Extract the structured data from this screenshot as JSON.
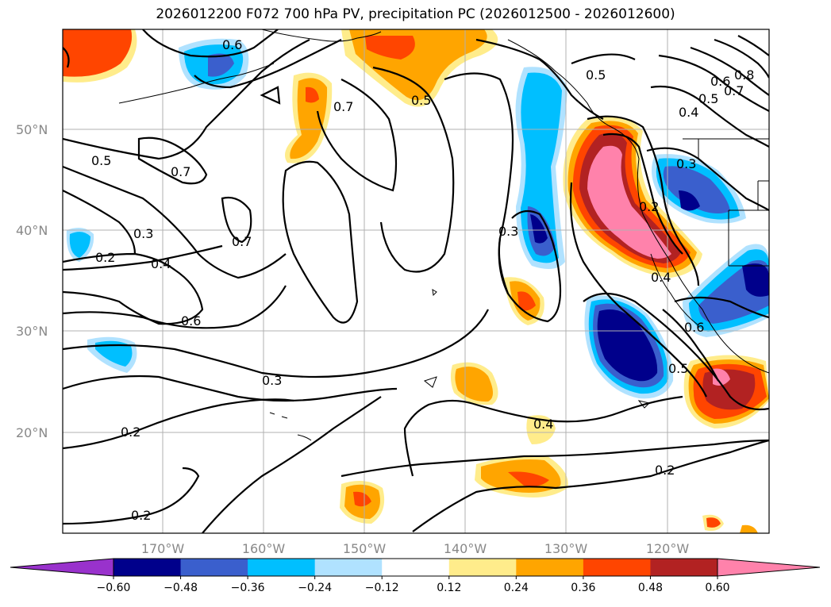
{
  "title": "2026012200 F072 700 hPa PV, precipitation PC (2026012500 - 2026012600)",
  "lat_labels": [
    "50°N",
    "40°N",
    "30°N",
    "20°N"
  ],
  "lon_labels": [
    "170°W",
    "160°W",
    "150°W",
    "140°W",
    "130°W",
    "120°W"
  ],
  "contour_labels": [
    "0.6",
    "0.5",
    "0.7",
    "0.5",
    "0.5",
    "0.6",
    "0.7",
    "0.8",
    "0.4",
    "0.3",
    "0.2",
    "0.5",
    "0.7",
    "0.7",
    "0.3",
    "0.2",
    "0.4",
    "0.6",
    "0.3",
    "0.4",
    "0.3",
    "0.6",
    "0.2",
    "0.4",
    "0.2",
    "0.2",
    "0.5"
  ],
  "colorbar": {
    "ticks": [
      "−0.60",
      "−0.48",
      "−0.36",
      "−0.24",
      "−0.12",
      "0.12",
      "0.24",
      "0.36",
      "0.48",
      "0.60"
    ],
    "colors": [
      "#9932cc",
      "#00008b",
      "#3a5fcd",
      "#00bfff",
      "#b0e2ff",
      "#ffffff",
      "#ffec8b",
      "#ffa500",
      "#ff4500",
      "#b22222",
      "#ff82ab"
    ]
  }
}
